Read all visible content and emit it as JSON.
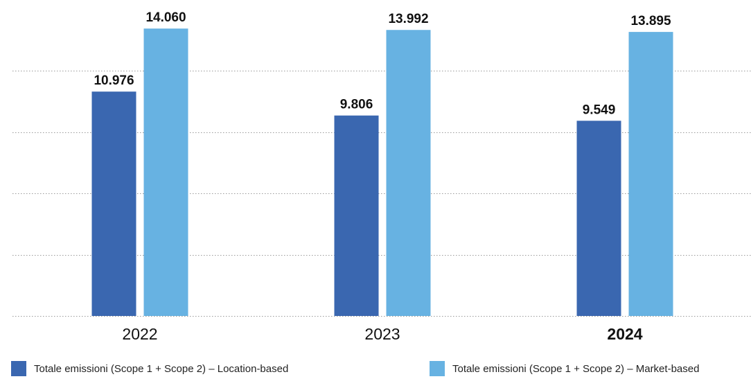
{
  "chart_data": {
    "type": "bar",
    "categories": [
      "2022",
      "2023",
      "2024"
    ],
    "highlight_category": "2024",
    "series": [
      {
        "name": "Totale emissioni (Scope 1 + Scope 2) – Location-based",
        "values": [
          10976,
          9806,
          9549
        ],
        "labels": [
          "10.976",
          "9.806",
          "9.549"
        ],
        "color": "#3a67b0"
      },
      {
        "name": "Totale emissioni (Scope 1 + Scope 2) – Market-based",
        "values": [
          14060,
          13992,
          13895
        ],
        "labels": [
          "14.060",
          "13.992",
          "13.895"
        ],
        "color": "#67b2e2"
      }
    ],
    "ylim": [
      0,
      16000
    ],
    "grid": true,
    "grid_style": "dotted",
    "y_tick_labels_shown": false,
    "legend_position": "bottom"
  }
}
